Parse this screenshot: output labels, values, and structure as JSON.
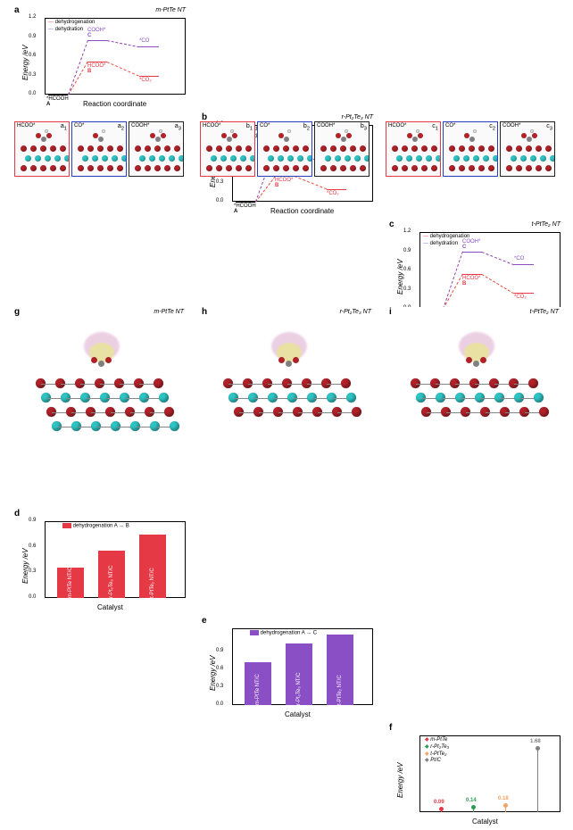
{
  "colors": {
    "red": "#e63946",
    "purple": "#8a4fc4",
    "darkred": "#b0222a",
    "teal": "#2ec4c4",
    "gray": "#808080",
    "orange": "#f4a261",
    "green": "#2a9d52",
    "yellow": "#e9e29c",
    "pink": "#e8c8e0"
  },
  "energy_abc": {
    "ylabel": "Energy /eV",
    "xlabel": "Reaction coordinate",
    "ylim": [
      0,
      1.2
    ],
    "yticks": [
      0,
      0.3,
      0.6,
      0.9,
      1.2
    ],
    "legend": [
      "dehydrogenation",
      "dehydration"
    ],
    "pts": [
      "*HCOOH",
      "HCOO*",
      "COOH*",
      "*CO",
      "*CO₂"
    ],
    "state_labels": [
      "A",
      "B",
      "C"
    ],
    "panels": [
      {
        "id": "a",
        "title": "m-PtTe NT",
        "a": 0.0,
        "b": 0.52,
        "c": 0.85,
        "co": 0.75,
        "co2": 0.3
      },
      {
        "id": "b",
        "title": "r-Pt₂Te₃ NT",
        "a": 0.0,
        "b": 0.4,
        "c": 0.85,
        "co": 0.55,
        "co2": 0.2
      },
      {
        "id": "c",
        "title": "t-PtTe₂ NT",
        "a": 0.0,
        "b": 0.55,
        "c": 0.9,
        "co": 0.7,
        "co2": 0.25
      }
    ]
  },
  "structs": {
    "groups": [
      {
        "prefix": "a",
        "border": "#e63946",
        "labels": [
          "HCOO*",
          "CO*",
          "COOH*"
        ]
      },
      {
        "prefix": "b",
        "border": "#e63946",
        "labels": [
          "HCOO*",
          "CO*",
          "COOH*"
        ]
      },
      {
        "prefix": "c",
        "border": "#e63946",
        "labels": [
          "HCOO*",
          "CO*",
          "COOH*"
        ]
      }
    ]
  },
  "bars": {
    "ylabel": "Energy /eV",
    "xlabel": "Catalyst",
    "ylim": [
      0,
      0.9
    ],
    "yticks": [
      0,
      0.3,
      0.6,
      0.9
    ],
    "panels": [
      {
        "id": "d",
        "color": "#e63946",
        "legend": "dehydrogenation A → B",
        "cats": [
          "m-PtTe NT/C",
          "r-Pt₂Te₃ NT/C",
          "t-PtTe₂ NT/C"
        ],
        "vals": [
          0.36,
          0.55,
          0.74
        ]
      },
      {
        "id": "e",
        "color": "#8a4fc4",
        "legend": "dehydrogenation A → C",
        "cats": [
          "m-PtTe NT/C",
          "r-Pt₂Te₃ NT/C",
          "t-PtTe₂ NT/C"
        ],
        "vals": [
          0.72,
          1.05,
          1.2
        ],
        "ylim": [
          0,
          1.3
        ]
      }
    ]
  },
  "panel_f": {
    "id": "f",
    "ylabel": "Energy /eV",
    "xlabel": "Catalyst",
    "legend": [
      "m-PtTe",
      "r-Pt₂Te₃",
      "t-PtTe₂",
      "Pt/C"
    ],
    "legend_colors": [
      "#e63946",
      "#2a9d52",
      "#f4a261",
      "#808080"
    ],
    "ylim": [
      0,
      2.0
    ],
    "vals": [
      0.09,
      0.14,
      0.18,
      1.68
    ],
    "colors": [
      "#e63946",
      "#2a9d52",
      "#f4a261",
      "#808080"
    ]
  },
  "renders": [
    {
      "id": "g",
      "title": "m-PtTe NT"
    },
    {
      "id": "h",
      "title": "r-Pt₂Te₃ NT"
    },
    {
      "id": "i",
      "title": "t-PtTe₂ NT"
    }
  ]
}
